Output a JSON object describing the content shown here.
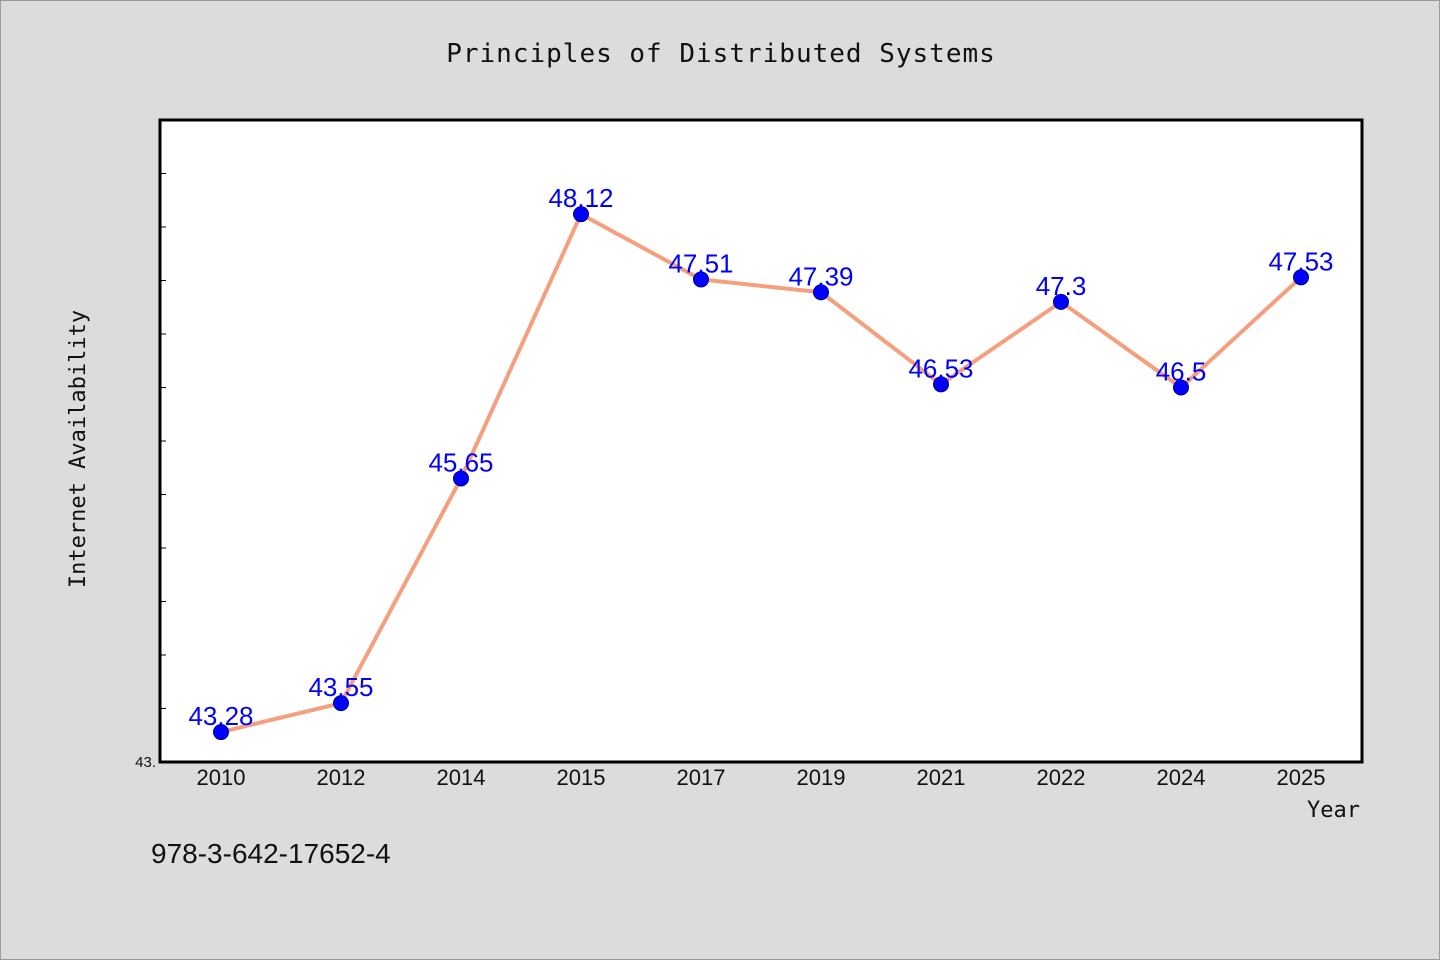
{
  "colors": {
    "background": "#dcdcdc",
    "plot_background": "#ffffff",
    "line": "#f4a07f",
    "marker": "#0000ff",
    "label": "#0000ff"
  },
  "footer": {
    "isbn": "978-3-642-17652-4"
  },
  "chart_data": {
    "type": "line",
    "title": "Principles of Distributed Systems",
    "xlabel": "Year",
    "ylabel": "Internet Availability",
    "categories": [
      "2010",
      "2012",
      "2014",
      "2015",
      "2017",
      "2019",
      "2021",
      "2022",
      "2024",
      "2025"
    ],
    "series": [
      {
        "values": [
          43.28,
          43.55,
          45.65,
          48.12,
          47.51,
          47.39,
          46.53,
          47.3,
          46.5,
          47.53
        ],
        "labels": [
          "43.28",
          "43.55",
          "45.65",
          "48.12",
          "47.51",
          "47.39",
          "46.53",
          "47.3",
          "46.5",
          "47.53"
        ]
      }
    ],
    "ylim": [
      43.0,
      49.0
    ],
    "y_tick_labels": [
      "43."
    ],
    "y_minor_tick_count": 12,
    "grid": false,
    "legend": "none"
  }
}
